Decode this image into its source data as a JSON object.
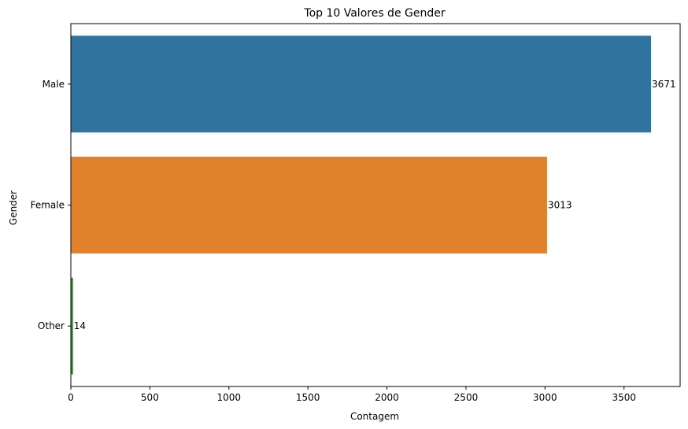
{
  "chart_data": {
    "type": "bar",
    "orientation": "horizontal",
    "title": "Top 10 Valores de Gender",
    "xlabel": "Contagem",
    "ylabel": "Gender",
    "categories": [
      "Male",
      "Female",
      "Other"
    ],
    "values": [
      3671,
      3013,
      14
    ],
    "data_labels": [
      "3671",
      "3013",
      "14"
    ],
    "colors": [
      "#3274a1",
      "#e1812c",
      "#3a923a"
    ],
    "xlim": [
      0,
      3855
    ],
    "xticks": [
      0,
      500,
      1000,
      1500,
      2000,
      2500,
      3000,
      3500
    ],
    "grid": false,
    "legend": false
  }
}
